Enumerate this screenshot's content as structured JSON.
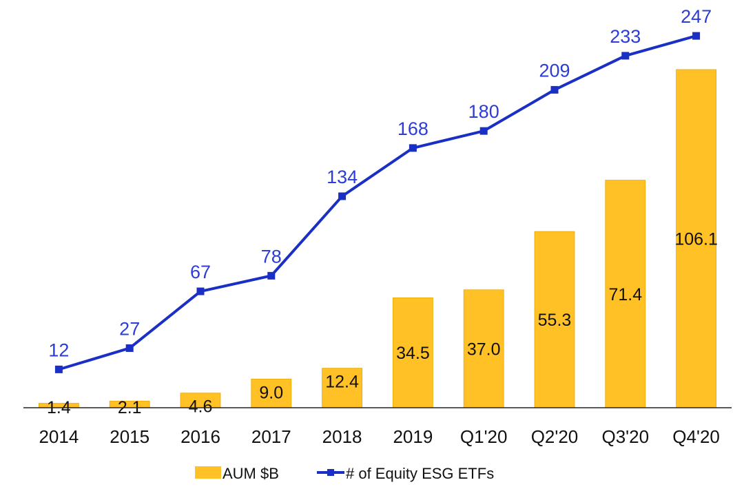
{
  "chart_data": {
    "type": "bar+line",
    "categories": [
      "2014",
      "2015",
      "2016",
      "2017",
      "2018",
      "2019",
      "Q1'20",
      "Q2'20",
      "Q3'20",
      "Q4'20"
    ],
    "series": [
      {
        "name": "AUM $B",
        "type": "bar",
        "axis": "left",
        "values": [
          1.4,
          2.1,
          4.6,
          9.0,
          12.4,
          34.5,
          37.0,
          55.3,
          71.4,
          106.1
        ],
        "labels": [
          "1.4",
          "2.1",
          "4.6",
          "9.0",
          "12.4",
          "34.5",
          "37.0",
          "55.3",
          "71.4",
          "106.1"
        ]
      },
      {
        "name": "# of Equity ESG ETFs",
        "type": "line",
        "axis": "right",
        "values": [
          12,
          27,
          67,
          78,
          134,
          168,
          180,
          209,
          233,
          247
        ],
        "labels": [
          "12",
          "27",
          "67",
          "78",
          "134",
          "168",
          "180",
          "209",
          "233",
          "247"
        ]
      }
    ],
    "ylim_bars": [
      0,
      125
    ],
    "ylim_line": [
      -15,
      265
    ],
    "title": "",
    "xlabel": "",
    "ylabel": "",
    "grid": false,
    "legend_position": "bottom-center"
  },
  "colors": {
    "bar_fill": "#FFC125",
    "bar_stroke": "#E6A800",
    "line": "#1A2FC4",
    "line_label": "#2B3DD6",
    "bar_label": "#111111",
    "axis": "#222222",
    "tick_label": "#111111"
  }
}
